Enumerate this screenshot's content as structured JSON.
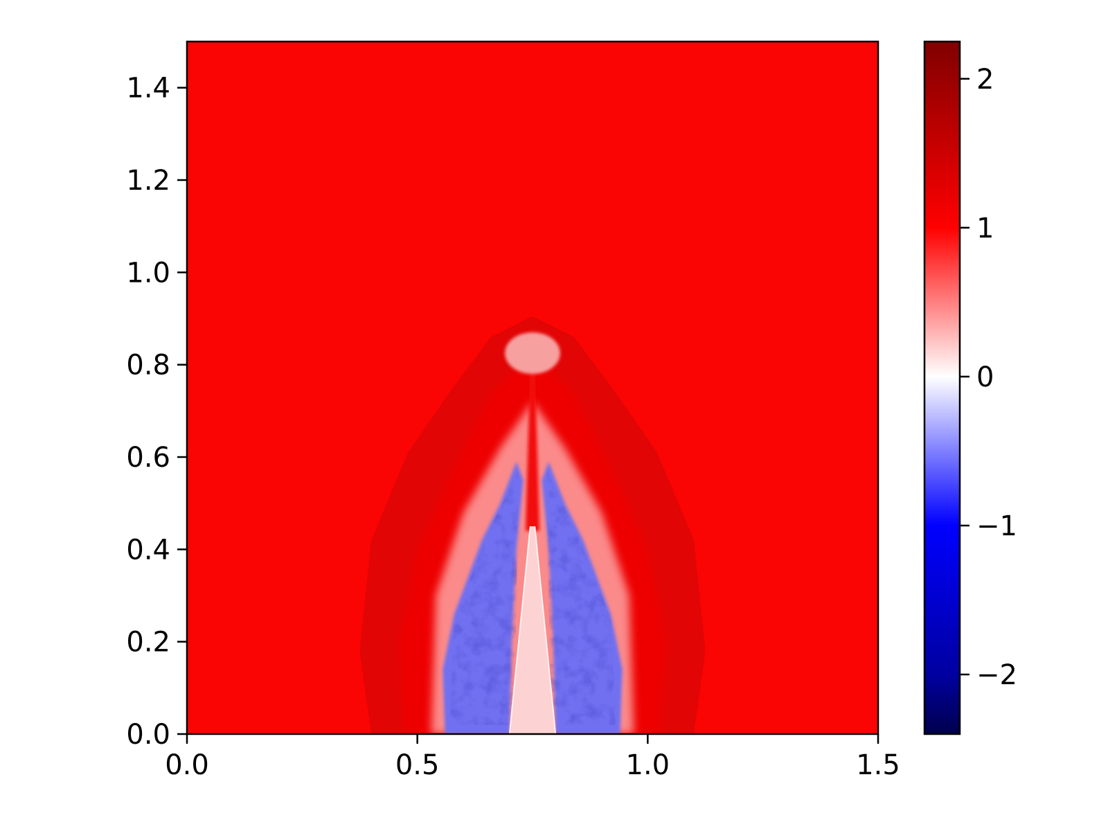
{
  "chart_data": {
    "type": "heatmap",
    "title": "",
    "xlabel": "",
    "ylabel": "",
    "xlim": [
      0.0,
      1.5
    ],
    "ylim": [
      0.0,
      1.5
    ],
    "x_ticks": [
      0.0,
      0.5,
      1.0,
      1.5
    ],
    "x_tick_labels": [
      "0.0",
      "0.5",
      "1.0",
      "1.5"
    ],
    "y_ticks": [
      0.0,
      0.2,
      0.4,
      0.6,
      0.8,
      1.0,
      1.2,
      1.4
    ],
    "y_tick_labels": [
      "0.0",
      "0.2",
      "0.4",
      "0.6",
      "0.8",
      "1.0",
      "1.2",
      "1.4"
    ],
    "grid": false,
    "colormap": "seismic",
    "colorbar": {
      "range": [
        -2.4,
        2.25
      ],
      "ticks": [
        -2,
        -1,
        0,
        1,
        2
      ],
      "tick_labels": [
        "−2",
        "−1",
        "0",
        "1",
        "2"
      ],
      "colors": {
        "min": "#00004c",
        "negative": "#0000ff",
        "zero": "#ffffff",
        "positive": "#ff0000",
        "max": "#800000"
      }
    },
    "field": {
      "background_value": 1.0,
      "background_color": "#fa0404",
      "structures": [
        {
          "name": "outer bow shock",
          "value": 1.25,
          "color": "#e10505",
          "apex": [
            0.75,
            0.9
          ],
          "base_x_range": [
            0.37,
            1.13
          ]
        },
        {
          "name": "inner shocked shell",
          "value": 1.15,
          "color": "#ee0505",
          "apex": [
            0.75,
            0.82
          ],
          "base_x_range": [
            0.45,
            1.05
          ]
        },
        {
          "name": "cocoon left",
          "value": -0.6,
          "color": "#6f6ff0",
          "x_range": [
            0.55,
            0.72
          ],
          "y_range": [
            0.0,
            0.6
          ]
        },
        {
          "name": "cocoon right",
          "value": -0.6,
          "color": "#6f6ff0",
          "x_range": [
            0.78,
            0.95
          ],
          "y_range": [
            0.0,
            0.6
          ]
        },
        {
          "name": "central jet",
          "value": 0.12,
          "color": "#fcd2d2",
          "apex": [
            0.75,
            0.45
          ],
          "base_x_range": [
            0.7,
            0.8
          ]
        },
        {
          "name": "jet head",
          "value": 0.3,
          "color": "#f7a0a0",
          "x_range": [
            0.69,
            0.81
          ],
          "y_range": [
            0.78,
            0.87
          ]
        }
      ]
    }
  }
}
